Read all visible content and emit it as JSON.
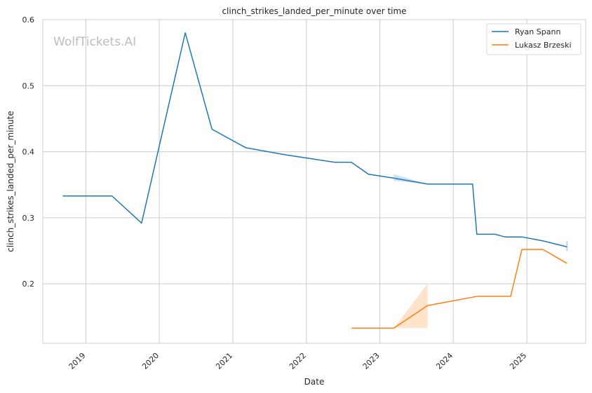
{
  "chart_data": {
    "type": "line",
    "title": "clinch_strikes_landed_per_minute over time",
    "xlabel": "Date",
    "ylabel": "clinch_strikes_landed_per_minute",
    "watermark": "WolfTickets.AI",
    "x_ticks": [
      "2019",
      "2020",
      "2021",
      "2022",
      "2023",
      "2024",
      "2025"
    ],
    "y_ticks": [
      "0.2",
      "0.3",
      "0.4",
      "0.5",
      "0.6"
    ],
    "xlim": [
      "2018-06-01",
      "2025-10-20"
    ],
    "ylim": [
      0.11,
      0.6
    ],
    "grid": true,
    "legend_position": "top-right",
    "series": [
      {
        "name": "Ryan Spann",
        "color": "#1f77b4",
        "points": [
          [
            "2018-09-08",
            0.333
          ],
          [
            "2019-05-11",
            0.333
          ],
          [
            "2019-10-05",
            0.292
          ],
          [
            "2020-05-09",
            0.58
          ],
          [
            "2020-09-19",
            0.434
          ],
          [
            "2021-03-06",
            0.406
          ],
          [
            "2021-09-25",
            0.395
          ],
          [
            "2022-05-21",
            0.384
          ],
          [
            "2022-08-13",
            0.384
          ],
          [
            "2022-11-05",
            0.366
          ],
          [
            "2023-03-11",
            0.36
          ],
          [
            "2023-08-26",
            0.351
          ],
          [
            "2024-04-06",
            0.351
          ],
          [
            "2024-04-27",
            0.275
          ],
          [
            "2024-07-27",
            0.275
          ],
          [
            "2024-09-14",
            0.271
          ],
          [
            "2024-12-07",
            0.271
          ],
          [
            "2025-03-22",
            0.265
          ],
          [
            "2025-07-19",
            0.256
          ]
        ],
        "band": [
          [
            "2023-03-11",
            0.356,
            0.366
          ],
          [
            "2023-08-26",
            0.351,
            0.351
          ]
        ],
        "band_end": [
          "2025-07-19",
          0.25,
          0.265
        ]
      },
      {
        "name": "Lukasz Brzeski",
        "color": "#ff7f0e",
        "points": [
          [
            "2022-08-13",
            0.133
          ],
          [
            "2023-03-11",
            0.133
          ],
          [
            "2023-08-26",
            0.167
          ],
          [
            "2024-04-27",
            0.181
          ],
          [
            "2024-10-12",
            0.181
          ],
          [
            "2024-12-07",
            0.252
          ],
          [
            "2025-03-22",
            0.252
          ],
          [
            "2025-07-19",
            0.231
          ]
        ],
        "band": [
          [
            "2023-03-11",
            0.133,
            0.133
          ],
          [
            "2023-08-26",
            0.133,
            0.2
          ]
        ]
      }
    ]
  }
}
